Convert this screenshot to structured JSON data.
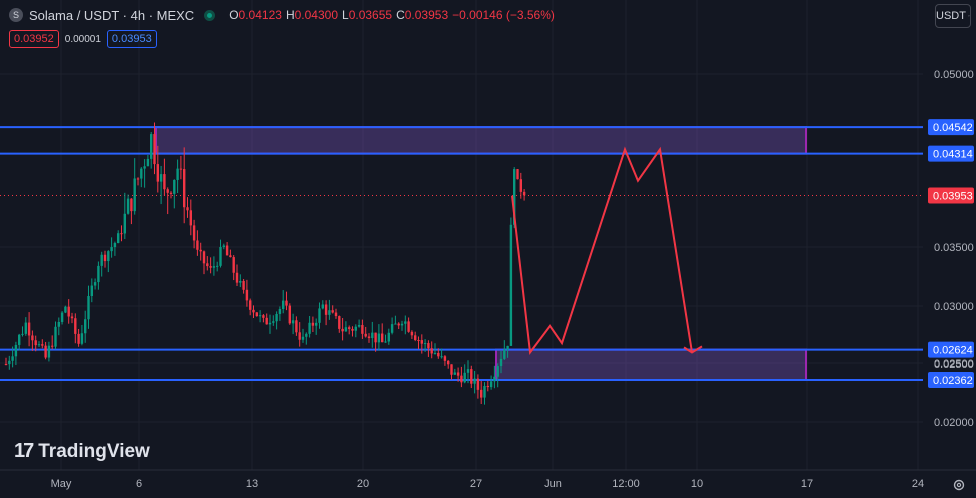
{
  "header": {
    "symbol_icon": "S",
    "title": "Solama / USDT · 4h · MEXC",
    "ohlc": [
      {
        "k": "O",
        "v": "0.04123"
      },
      {
        "k": "H",
        "v": "0.04300"
      },
      {
        "k": "L",
        "v": "0.03655"
      },
      {
        "k": "C",
        "v": "0.03953"
      },
      {
        "k": "",
        "v": "−0.00146 (−3.56%)"
      }
    ]
  },
  "quote": {
    "bid": "0.03952",
    "spread": "0.00001",
    "ask": "0.03953"
  },
  "currency_button": {
    "label": "USDT",
    "icon": "chevron-down-icon"
  },
  "logo": {
    "mark": "17",
    "text": "TradingView"
  },
  "settings_icon": "gear-icon",
  "colors": {
    "background": "#131722",
    "up": "#089981",
    "down": "#f23645",
    "level_line": "#2962ff",
    "zone_border": "#9c27b0",
    "projection": "#f23645"
  },
  "chart_data": {
    "type": "candlestick",
    "y_ticks": [
      "0.05000",
      "0.03500",
      "0.03000",
      "0.02500",
      "0.02000"
    ],
    "x_ticks": [
      "May",
      "6",
      "13",
      "20",
      "27",
      "Jun",
      "12:00",
      "10",
      "17",
      "24"
    ],
    "price_labels": [
      {
        "value": "0.04542",
        "style": "blue"
      },
      {
        "value": "0.04314",
        "style": "blue"
      },
      {
        "value": "0.03953",
        "style": "red"
      },
      {
        "value": "0.02624",
        "style": "blue"
      },
      {
        "value": "0.02500",
        "style": "plain"
      },
      {
        "value": "0.02362",
        "style": "blue"
      }
    ],
    "horizontal_levels": [
      0.04542,
      0.04314,
      0.02624,
      0.02362
    ],
    "zones": [
      {
        "from": 0.04314,
        "to": 0.04542
      },
      {
        "from": 0.02362,
        "to": 0.02624
      }
    ],
    "last_price": 0.03953,
    "candle_anchors": [
      [
        0,
        0.025
      ],
      [
        6,
        0.0285
      ],
      [
        12,
        0.0255
      ],
      [
        18,
        0.03
      ],
      [
        22,
        0.0268
      ],
      [
        28,
        0.0338
      ],
      [
        34,
        0.0358
      ],
      [
        40,
        0.041
      ],
      [
        44,
        0.0445
      ],
      [
        48,
        0.0395
      ],
      [
        52,
        0.042
      ],
      [
        58,
        0.0345
      ],
      [
        62,
        0.033
      ],
      [
        66,
        0.035
      ],
      [
        72,
        0.031
      ],
      [
        78,
        0.0285
      ],
      [
        84,
        0.03
      ],
      [
        90,
        0.027
      ],
      [
        96,
        0.03
      ],
      [
        102,
        0.028
      ],
      [
        108,
        0.0282
      ],
      [
        114,
        0.0268
      ],
      [
        120,
        0.029
      ],
      [
        126,
        0.0268
      ],
      [
        130,
        0.026
      ],
      [
        136,
        0.024
      ],
      [
        140,
        0.024
      ],
      [
        144,
        0.0225
      ],
      [
        148,
        0.0245
      ],
      [
        152,
        0.027
      ],
      [
        154,
        0.0405
      ],
      [
        157,
        0.04
      ]
    ],
    "projection_path": [
      [
        0.0395,
        "start"
      ],
      [
        0.026,
        "low1"
      ],
      [
        0.0283,
        "bounce1"
      ],
      [
        0.0268,
        "dip"
      ],
      [
        0.0435,
        "top1"
      ],
      [
        0.0408,
        "mid"
      ],
      [
        0.0435,
        "top2"
      ],
      [
        0.026,
        "low2"
      ]
    ]
  }
}
